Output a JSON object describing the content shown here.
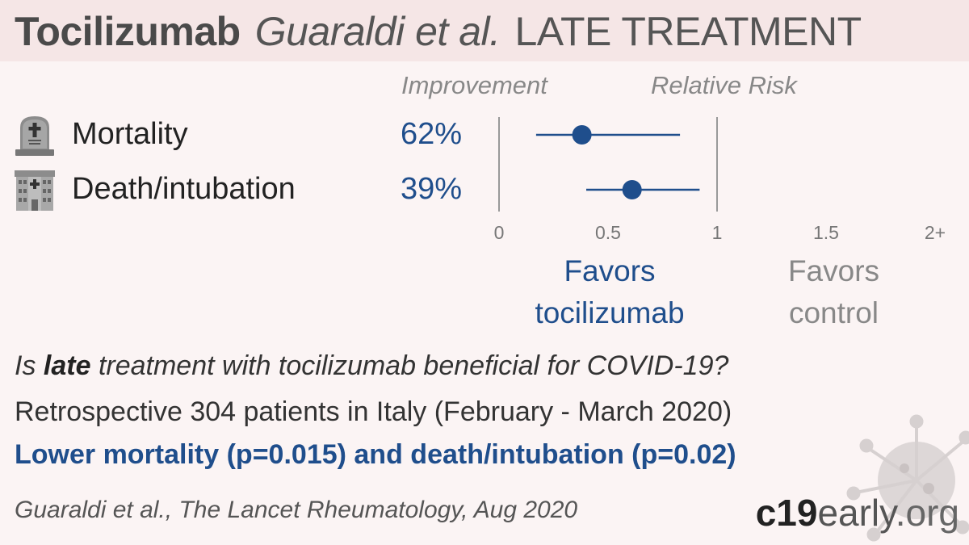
{
  "header": {
    "drug": "Tocilizumab",
    "authors": "Guaraldi et al.",
    "phase": "LATE TREATMENT"
  },
  "columns": {
    "improvement": "Improvement",
    "relative_risk": "Relative Risk"
  },
  "chart_data": {
    "type": "forest",
    "xlim": [
      0,
      2
    ],
    "x_ticks": [
      "0",
      "0.5",
      "1",
      "1.5",
      "2+"
    ],
    "x_tick_values": [
      0,
      0.5,
      1,
      1.5,
      2
    ],
    "rows": [
      {
        "label": "Mortality",
        "improvement": "62%",
        "rr": 0.38,
        "ci_low": 0.17,
        "ci_high": 0.83,
        "icon": "tombstone-icon"
      },
      {
        "label": "Death/intubation",
        "improvement": "39%",
        "rr": 0.61,
        "ci_low": 0.4,
        "ci_high": 0.92,
        "icon": "hospital-icon"
      }
    ],
    "favors_left": [
      "Favors",
      "tocilizumab"
    ],
    "favors_right": [
      "Favors",
      "control"
    ],
    "colors": {
      "point": "#1f4e8c",
      "axis": "#999999",
      "tick": "#777777"
    }
  },
  "text": {
    "question_pre": "Is ",
    "question_bold": "late",
    "question_post": " treatment with tocilizumab beneficial for COVID-19?",
    "design": "Retrospective 304 patients in Italy (February - March 2020)",
    "result": "Lower mortality (p=0.015) and death/intubation (p=0.02)",
    "citation": "Guaraldi et al., The Lancet Rheumatology, Aug 2020"
  },
  "brand": {
    "part1": "c19",
    "part2": "early",
    "part3": ".org"
  }
}
